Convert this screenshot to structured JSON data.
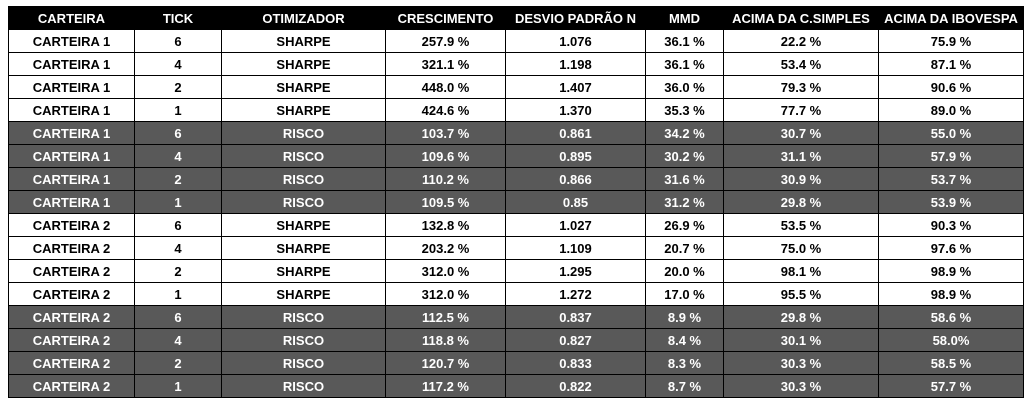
{
  "headers": [
    "CARTEIRA",
    "TICK",
    "OTIMIZADOR",
    "CRESCIMENTO",
    "DESVIO PADRÃO N",
    "MMD",
    "ACIMA DA C.SIMPLES",
    "ACIMA DA IBOVESPA"
  ],
  "rows": [
    {
      "carteira": "CARTEIRA 1",
      "tick": "6",
      "otimizador": "SHARPE",
      "crescimento": "257.9 %",
      "desvio": "1.076",
      "mmd": "36.1 %",
      "acima_csimples": "22.2 %",
      "acima_ibovespa": "75.9 %"
    },
    {
      "carteira": "CARTEIRA 1",
      "tick": "4",
      "otimizador": "SHARPE",
      "crescimento": "321.1 %",
      "desvio": "1.198",
      "mmd": "36.1 %",
      "acima_csimples": "53.4 %",
      "acima_ibovespa": "87.1 %"
    },
    {
      "carteira": "CARTEIRA 1",
      "tick": "2",
      "otimizador": "SHARPE",
      "crescimento": "448.0 %",
      "desvio": "1.407",
      "mmd": "36.0 %",
      "acima_csimples": "79.3 %",
      "acima_ibovespa": "90.6 %"
    },
    {
      "carteira": "CARTEIRA 1",
      "tick": "1",
      "otimizador": "SHARPE",
      "crescimento": "424.6 %",
      "desvio": "1.370",
      "mmd": "35.3 %",
      "acima_csimples": "77.7 %",
      "acima_ibovespa": "89.0 %"
    },
    {
      "carteira": "CARTEIRA 1",
      "tick": "6",
      "otimizador": "RISCO",
      "crescimento": "103.7 %",
      "desvio": "0.861",
      "mmd": "34.2 %",
      "acima_csimples": "30.7 %",
      "acima_ibovespa": "55.0 %"
    },
    {
      "carteira": "CARTEIRA 1",
      "tick": "4",
      "otimizador": "RISCO",
      "crescimento": "109.6 %",
      "desvio": "0.895",
      "mmd": "30.2 %",
      "acima_csimples": "31.1 %",
      "acima_ibovespa": "57.9 %"
    },
    {
      "carteira": "CARTEIRA 1",
      "tick": "2",
      "otimizador": "RISCO",
      "crescimento": "110.2 %",
      "desvio": "0.866",
      "mmd": "31.6 %",
      "acima_csimples": "30.9 %",
      "acima_ibovespa": "53.7 %"
    },
    {
      "carteira": "CARTEIRA 1",
      "tick": "1",
      "otimizador": "RISCO",
      "crescimento": "109.5 %",
      "desvio": "0.85",
      "mmd": "31.2 %",
      "acima_csimples": "29.8 %",
      "acima_ibovespa": "53.9 %"
    },
    {
      "carteira": "CARTEIRA 2",
      "tick": "6",
      "otimizador": "SHARPE",
      "crescimento": "132.8 %",
      "desvio": "1.027",
      "mmd": "26.9 %",
      "acima_csimples": "53.5 %",
      "acima_ibovespa": "90.3 %"
    },
    {
      "carteira": "CARTEIRA 2",
      "tick": "4",
      "otimizador": "SHARPE",
      "crescimento": "203.2 %",
      "desvio": "1.109",
      "mmd": "20.7 %",
      "acima_csimples": "75.0 %",
      "acima_ibovespa": "97.6 %"
    },
    {
      "carteira": "CARTEIRA 2",
      "tick": "2",
      "otimizador": "SHARPE",
      "crescimento": "312.0 %",
      "desvio": "1.295",
      "mmd": "20.0 %",
      "acima_csimples": "98.1 %",
      "acima_ibovespa": "98.9 %"
    },
    {
      "carteira": "CARTEIRA 2",
      "tick": "1",
      "otimizador": "SHARPE",
      "crescimento": "312.0 %",
      "desvio": "1.272",
      "mmd": "17.0 %",
      "acima_csimples": "95.5 %",
      "acima_ibovespa": "98.9 %"
    },
    {
      "carteira": "CARTEIRA 2",
      "tick": "6",
      "otimizador": "RISCO",
      "crescimento": "112.5 %",
      "desvio": "0.837",
      "mmd": "8.9 %",
      "acima_csimples": "29.8 %",
      "acima_ibovespa": "58.6 %"
    },
    {
      "carteira": "CARTEIRA 2",
      "tick": "4",
      "otimizador": "RISCO",
      "crescimento": "118.8 %",
      "desvio": "0.827",
      "mmd": "8.4 %",
      "acima_csimples": "30.1 %",
      "acima_ibovespa": "58.0%"
    },
    {
      "carteira": "CARTEIRA 2",
      "tick": "2",
      "otimizador": "RISCO",
      "crescimento": "120.7 %",
      "desvio": "0.833",
      "mmd": "8.3 %",
      "acima_csimples": "30.3 %",
      "acima_ibovespa": "58.5 %"
    },
    {
      "carteira": "CARTEIRA 2",
      "tick": "1",
      "otimizador": "RISCO",
      "crescimento": "117.2 %",
      "desvio": "0.822",
      "mmd": "8.7 %",
      "acima_csimples": "30.3 %",
      "acima_ibovespa": "57.7 %"
    }
  ],
  "colors": {
    "header_bg": "#000000",
    "header_text": "#ffffff",
    "sharpe_row_bg": "#ffffff",
    "risco_row_bg": "#595959"
  }
}
